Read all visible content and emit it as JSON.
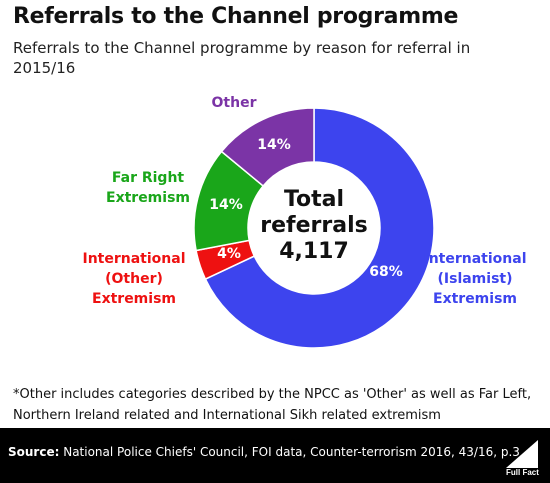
{
  "header": {
    "title": "Referrals to the Channel programme",
    "subtitle": "Referrals to the Channel programme by reason for referral in 2015/16"
  },
  "chart_data": {
    "type": "pie",
    "donut": true,
    "center_label": [
      "Total",
      "referrals",
      "4,117"
    ],
    "slices": [
      {
        "name": "International (Islamist) Extremism",
        "label_lines": [
          "International",
          "(Islamist)",
          "Extremism"
        ],
        "value": 68,
        "value_label": "68%",
        "color": "#3d44ee"
      },
      {
        "name": "International (Other) Extremism",
        "label_lines": [
          "International",
          "(Other)",
          "Extremism"
        ],
        "value": 4,
        "value_label": "4%",
        "color": "#ee1111"
      },
      {
        "name": "Far Right Extremism",
        "label_lines": [
          "Far Right",
          "Extremism"
        ],
        "value": 14,
        "value_label": "14%",
        "color": "#1aa61a"
      },
      {
        "name": "Other",
        "label_lines": [
          "Other"
        ],
        "value": 14,
        "value_label": "14%",
        "color": "#7b34a6"
      }
    ]
  },
  "footnote": "*Other includes categories described by the NPCC as 'Other' as well as Far Left, Northern Ireland related and International Sikh related extremism",
  "footer": {
    "source_label": "Source:",
    "source_text": " National Police Chiefs' Council, FOI data, Counter-terrorism 2016, 43/16, p.3",
    "logo_text": "Full Fact"
  },
  "colors": {
    "background": "#ffffff",
    "footer": "#000000"
  }
}
